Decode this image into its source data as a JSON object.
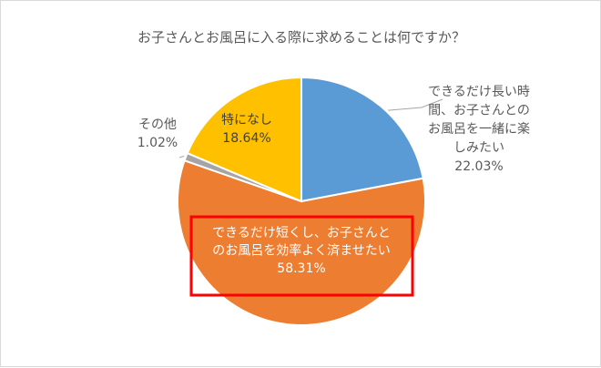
{
  "chart_data": {
    "type": "pie",
    "title": "お子さんとお風呂に入る際に求めることは何ですか？",
    "slices": [
      {
        "label_lines": [
          "できるだけ長い時",
          "間、お子さんとの",
          "お風呂を一緒に楽",
          "しみたい"
        ],
        "value": 22.03,
        "value_label": "22.03%",
        "color": "#5b9bd5"
      },
      {
        "label_lines": [
          "できるだけ短くし、お子さんと",
          "のお風呂を効率よく済ませたい"
        ],
        "value": 58.31,
        "value_label": "58.31%",
        "color": "#ed7d31",
        "highlighted": true,
        "highlight_color": "#ff0000"
      },
      {
        "label_lines": [
          "その他"
        ],
        "value": 1.02,
        "value_label": "1.02%",
        "color": "#a5a5a5"
      },
      {
        "label_lines": [
          "特になし"
        ],
        "value": 18.64,
        "value_label": "18.64%",
        "color": "#ffc000"
      }
    ],
    "start_angle_deg": 0,
    "direction": "clockwise",
    "legend": "none"
  }
}
